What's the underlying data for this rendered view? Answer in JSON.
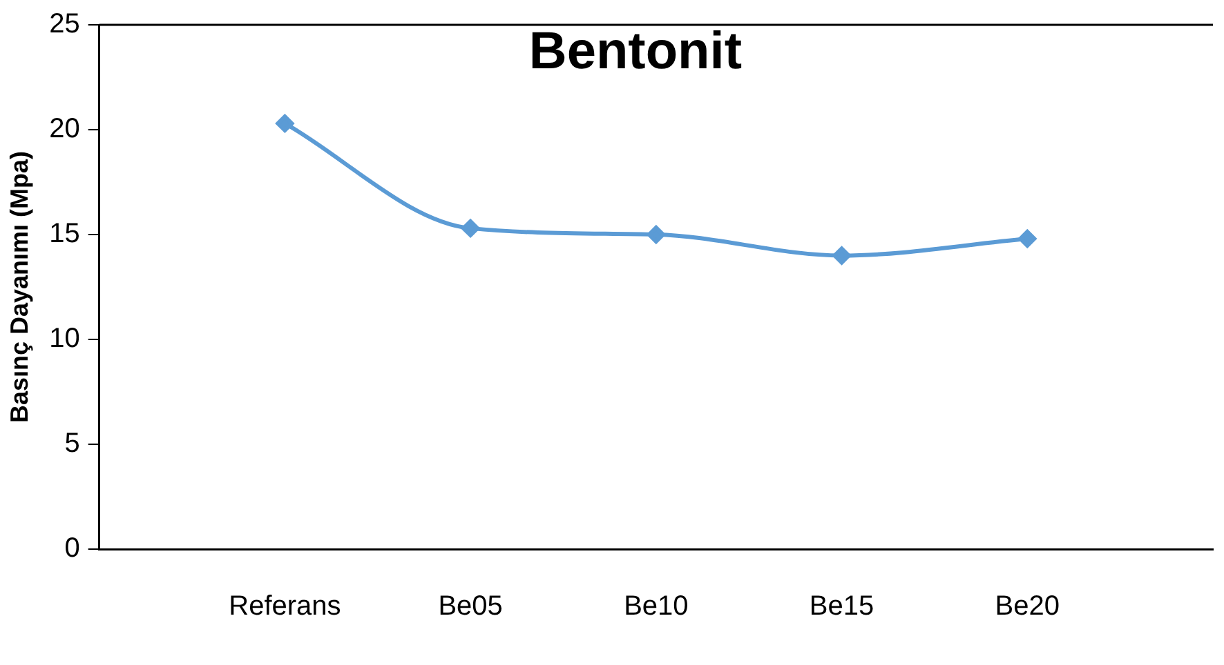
{
  "chart_data": {
    "type": "line",
    "title": "Bentonit",
    "ylabel": "Basınç Dayanımı (Mpa)",
    "categories": [
      "Referans",
      "Be05",
      "Be10",
      "Be15",
      "Be20"
    ],
    "series": [
      {
        "color": "#5b9bd5",
        "values": [
          20.3,
          15.3,
          15.0,
          14.0,
          14.8
        ]
      }
    ],
    "ylim": [
      0,
      25
    ],
    "yticks": [
      0,
      5,
      10,
      15,
      20,
      25
    ],
    "grid": false,
    "legend": false,
    "marker": "diamond",
    "line_style": "solid"
  }
}
